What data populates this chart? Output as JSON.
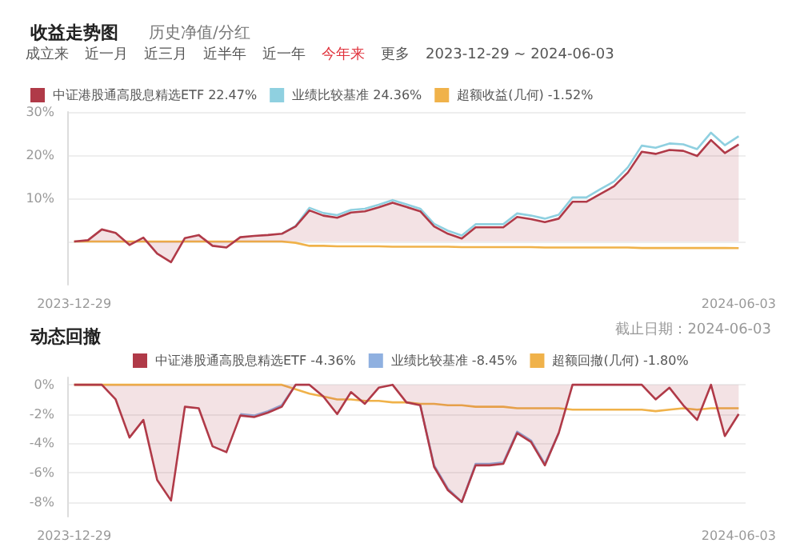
{
  "chart_data": [
    {
      "type": "line",
      "title": "收益走势图",
      "subtitle": "历史净值/分红",
      "annotations": [
        "成立来",
        "近一月",
        "近三月",
        "近半年",
        "近一年",
        "今年来",
        "更多",
        "2023-12-29 ~ 2024-06-03"
      ],
      "categories": [
        "2023-12-29",
        null,
        null,
        null,
        null,
        null,
        null,
        null,
        null,
        null,
        null,
        null,
        null,
        null,
        null,
        null,
        null,
        null,
        null,
        null,
        null,
        null,
        null,
        null,
        null,
        null,
        null,
        null,
        null,
        null,
        null,
        null,
        null,
        null,
        null,
        null,
        null,
        null,
        null,
        null,
        null,
        null,
        null,
        null,
        null,
        null,
        null,
        null,
        "2024-06-03"
      ],
      "series": [
        {
          "name": "中证港股通高股息精选ETF 22.47%",
          "type": "area",
          "color": "#b03a48",
          "values": [
            0,
            0.3,
            2.8,
            2.0,
            -0.8,
            0.9,
            -2.8,
            -4.8,
            0.8,
            1.5,
            -1.0,
            -1.4,
            1.0,
            1.3,
            1.5,
            1.8,
            3.5,
            7.2,
            6.0,
            5.5,
            6.7,
            7.0,
            7.9,
            9.0,
            8.0,
            7.0,
            3.5,
            1.8,
            0.7,
            3.3,
            3.3,
            3.3,
            5.7,
            5.2,
            4.5,
            5.3,
            9.2,
            9.2,
            11.0,
            12.8,
            16.0,
            20.8,
            20.3,
            21.2,
            21.0,
            19.8,
            23.5,
            20.5,
            22.47
          ]
        },
        {
          "name": "业绩比较基准 24.36%",
          "color": "#8fd0e0",
          "values": [
            null,
            null,
            null,
            null,
            null,
            null,
            null,
            null,
            null,
            null,
            null,
            null,
            null,
            null,
            null,
            1.8,
            3.6,
            7.8,
            6.6,
            6.1,
            7.3,
            7.6,
            8.5,
            9.6,
            8.6,
            7.6,
            4.1,
            2.5,
            1.4,
            4.0,
            4.0,
            4.0,
            6.5,
            6.0,
            5.3,
            6.2,
            10.2,
            10.2,
            12.1,
            13.9,
            17.2,
            22.2,
            21.7,
            22.7,
            22.5,
            21.4,
            25.2,
            22.3,
            24.36
          ]
        },
        {
          "name": "超额收益(几何) -1.52%",
          "color": "#f0b24a",
          "values": [
            0,
            0,
            0,
            0,
            0,
            0,
            0,
            0,
            0,
            0,
            0,
            0,
            0,
            0,
            0,
            0,
            -0.3,
            -1.0,
            -1.0,
            -1.1,
            -1.1,
            -1.1,
            -1.1,
            -1.2,
            -1.2,
            -1.2,
            -1.2,
            -1.2,
            -1.3,
            -1.3,
            -1.3,
            -1.3,
            -1.3,
            -1.3,
            -1.4,
            -1.4,
            -1.4,
            -1.4,
            -1.4,
            -1.4,
            -1.4,
            -1.5,
            -1.5,
            -1.5,
            -1.5,
            -1.5,
            -1.5,
            -1.5,
            -1.52
          ]
        }
      ],
      "ylim": [
        -10,
        30
      ],
      "yticks": [
        {
          "value": 0,
          "label": null
        },
        {
          "value": 10,
          "label": "10%"
        },
        {
          "value": 20,
          "label": "20%"
        },
        {
          "value": 30,
          "label": "30%"
        }
      ],
      "grid": "y",
      "legend": "top",
      "marker": "none",
      "line_style": "solid"
    },
    {
      "type": "line",
      "title": "动态回撤",
      "annotations": [
        "截止日期：2024-06-03"
      ],
      "categories": [
        "2023-12-29",
        null,
        null,
        null,
        null,
        null,
        null,
        null,
        null,
        null,
        null,
        null,
        null,
        null,
        null,
        null,
        null,
        null,
        null,
        null,
        null,
        null,
        null,
        null,
        null,
        null,
        null,
        null,
        null,
        null,
        null,
        null,
        null,
        null,
        null,
        null,
        null,
        null,
        null,
        null,
        null,
        null,
        null,
        null,
        null,
        null,
        null,
        null,
        "2024-06-03"
      ],
      "series": [
        {
          "name": "中证港股通高股息精选ETF -4.36%",
          "type": "area",
          "color": "#b03a48",
          "values": [
            0,
            0,
            0,
            -1.0,
            -3.6,
            -2.4,
            -6.5,
            -7.9,
            -1.5,
            -1.6,
            -4.2,
            -4.6,
            -2.1,
            -2.2,
            -1.9,
            -1.5,
            0,
            0,
            -0.8,
            -2.0,
            -0.5,
            -1.3,
            -0.2,
            0,
            -1.2,
            -1.4,
            -5.6,
            -7.2,
            -8.0,
            -5.5,
            -5.5,
            -5.4,
            -3.3,
            -3.9,
            -5.5,
            -3.3,
            0,
            0,
            0,
            0,
            0,
            0,
            -1.0,
            -0.2,
            -1.4,
            -2.4,
            0,
            -3.5,
            -2.0
          ]
        },
        {
          "name": "业绩比较基准 -8.45%",
          "color": "#8fb0e0",
          "values": [
            null,
            null,
            null,
            null,
            null,
            null,
            null,
            null,
            null,
            null,
            null,
            null,
            -2.0,
            -2.1,
            -1.8,
            -1.4,
            0,
            null,
            null,
            null,
            null,
            null,
            null,
            null,
            null,
            -1.4,
            -5.5,
            -7.1,
            -8.0,
            -5.4,
            -5.4,
            -5.3,
            -3.2,
            -3.8,
            -5.4,
            -3.3,
            null,
            null,
            null,
            null,
            null,
            null,
            null,
            null,
            null,
            null,
            null,
            null,
            null
          ]
        },
        {
          "name": "超额回撤(几何) -1.80%",
          "color": "#f0b24a",
          "values": [
            0,
            0,
            0,
            0,
            0,
            0,
            0,
            0,
            0,
            0,
            0,
            0,
            0,
            0,
            0,
            0,
            -0.3,
            -0.6,
            -0.8,
            -1.0,
            -1.0,
            -1.1,
            -1.1,
            -1.2,
            -1.2,
            -1.3,
            -1.3,
            -1.4,
            -1.4,
            -1.5,
            -1.5,
            -1.5,
            -1.6,
            -1.6,
            -1.6,
            -1.6,
            -1.7,
            -1.7,
            -1.7,
            -1.7,
            -1.7,
            -1.7,
            -1.8,
            -1.7,
            -1.6,
            -1.7,
            -1.6,
            -1.6,
            -1.6
          ]
        }
      ],
      "ylim": [
        -9,
        0.5
      ],
      "yticks": [
        {
          "value": 0,
          "label": "0%"
        },
        {
          "value": -2,
          "label": "-2%"
        },
        {
          "value": -4,
          "label": "-4%"
        },
        {
          "value": -6,
          "label": "-6%"
        },
        {
          "value": -8,
          "label": "-8%"
        }
      ],
      "grid": "y",
      "legend": "top",
      "marker": "none",
      "line_style": "solid"
    }
  ]
}
